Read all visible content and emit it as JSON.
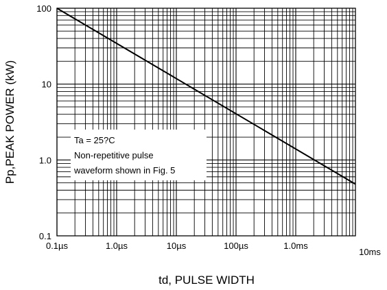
{
  "chart_data": {
    "type": "line",
    "title": "",
    "xlabel": "td, PULSE WIDTH",
    "ylabel": "Pp,PEAK POWER (kW)",
    "x_scale": "log",
    "y_scale": "log",
    "xlim": [
      "0.1µs",
      "10ms"
    ],
    "ylim": [
      0.1,
      100
    ],
    "grid": true,
    "x_ticks": [
      "0.1µs",
      "1.0µs",
      "10µs",
      "100µs",
      "1.0ms",
      "10ms"
    ],
    "y_ticks": [
      "0.1",
      "1.0",
      "10",
      "100"
    ],
    "series": [
      {
        "x": [
          "0.1µs",
          "10ms"
        ],
        "y": [
          100,
          0.48
        ]
      }
    ],
    "annotation": {
      "lines": [
        "Ta = 25?C",
        "Non-repetitive pulse",
        "waveform shown in Fig. 5"
      ],
      "position": "lower-left"
    }
  }
}
